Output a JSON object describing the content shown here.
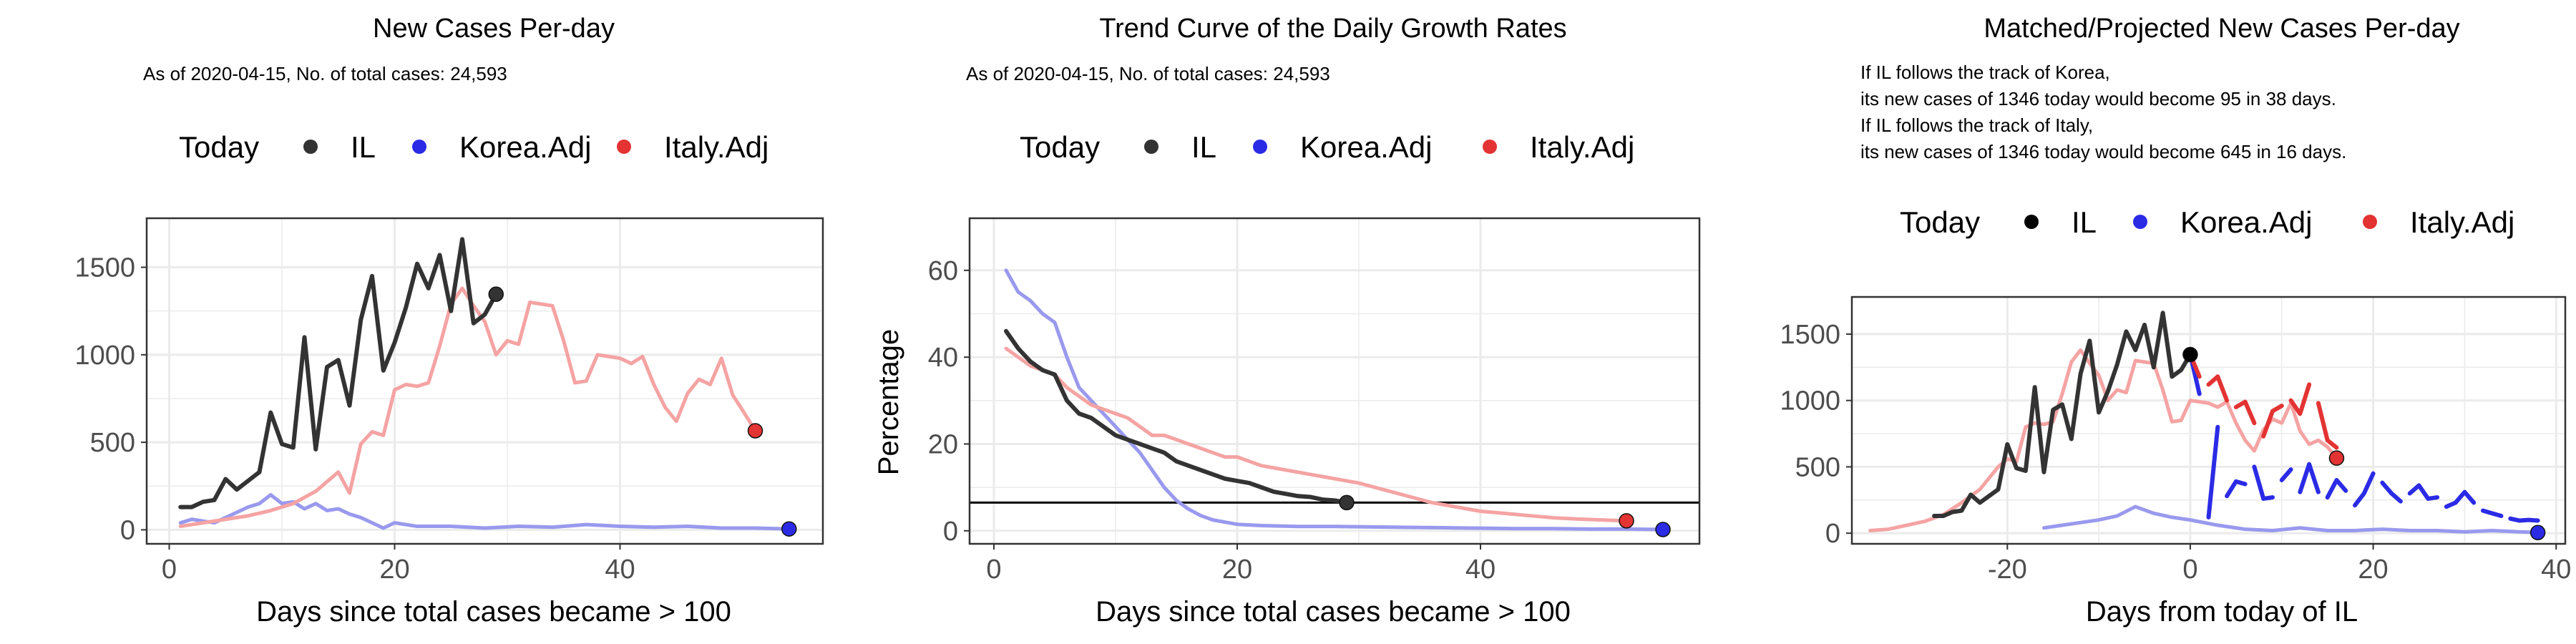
{
  "colors": {
    "il": "#333333",
    "korea": "#9999ee",
    "italy": "#f5a3a3",
    "korea_strong": "#2b2be6",
    "italy_strong": "#e33333",
    "grid": "#ebebeb",
    "panel_border": "#333333"
  },
  "legend": {
    "title": "Today",
    "items": [
      "IL",
      "Korea.Adj",
      "Italy.Adj"
    ]
  },
  "chart_data": [
    {
      "type": "line",
      "title": "New Cases Per-day",
      "subtitle_lines": [
        "As of 2020-04-15, No. of total cases: 24,593"
      ],
      "xlabel": "Days since total cases became > 100",
      "ylabel": "",
      "xlim": [
        -2,
        58
      ],
      "ylim": [
        -80,
        1780
      ],
      "xticks": [
        0,
        20,
        40
      ],
      "yticks": [
        0,
        500,
        1000,
        1500
      ],
      "grid": true,
      "series": [
        {
          "name": "IL",
          "x": [
            1,
            2,
            3,
            4,
            5,
            6,
            7,
            8,
            9,
            10,
            11,
            12,
            13,
            14,
            15,
            16,
            17,
            18,
            19,
            20,
            21,
            22,
            23,
            24,
            25,
            26,
            27,
            28,
            29
          ],
          "y": [
            130,
            130,
            160,
            170,
            290,
            230,
            280,
            330,
            670,
            490,
            470,
            1100,
            460,
            930,
            970,
            710,
            1200,
            1450,
            910,
            1070,
            1270,
            1520,
            1380,
            1570,
            1250,
            1660,
            1180,
            1230,
            1346
          ]
        },
        {
          "name": "Korea.Adj",
          "x": [
            1,
            2,
            3,
            4,
            5,
            6,
            7,
            8,
            9,
            10,
            11,
            12,
            13,
            14,
            15,
            16,
            17,
            18,
            19,
            20,
            22,
            25,
            28,
            31,
            34,
            37,
            40,
            43,
            46,
            49,
            52,
            55
          ],
          "y": [
            40,
            60,
            50,
            40,
            70,
            100,
            130,
            150,
            200,
            150,
            160,
            120,
            150,
            110,
            120,
            90,
            70,
            40,
            10,
            40,
            20,
            20,
            10,
            20,
            15,
            30,
            20,
            15,
            20,
            10,
            10,
            5
          ]
        },
        {
          "name": "Italy.Adj",
          "x": [
            1,
            3,
            5,
            7,
            9,
            11,
            13,
            15,
            16,
            17,
            18,
            19,
            20,
            21,
            22,
            23,
            24,
            25,
            26,
            27,
            28,
            29,
            30,
            31,
            32,
            33,
            34,
            35,
            36,
            37,
            38,
            39,
            40,
            41,
            42,
            43,
            44,
            45,
            46,
            47,
            48,
            49,
            50,
            51,
            52
          ],
          "y": [
            20,
            40,
            60,
            80,
            110,
            150,
            220,
            330,
            210,
            490,
            560,
            540,
            800,
            830,
            820,
            840,
            1050,
            1290,
            1380,
            1280,
            1190,
            1000,
            1080,
            1060,
            1300,
            1290,
            1280,
            1080,
            840,
            850,
            1000,
            990,
            980,
            950,
            990,
            830,
            700,
            620,
            780,
            860,
            830,
            980,
            770,
            670,
            566
          ]
        }
      ],
      "today_points": [
        {
          "series": "IL",
          "x": 29,
          "y": 1346
        },
        {
          "series": "Korea.Adj",
          "x": 55,
          "y": 5
        },
        {
          "series": "Italy.Adj",
          "x": 52,
          "y": 566
        }
      ]
    },
    {
      "type": "line",
      "title": "Trend Curve of the Daily Growth Rates",
      "subtitle_lines": [
        "As of 2020-04-15, No. of total cases: 24,593"
      ],
      "xlabel": "Days since total cases became > 100",
      "ylabel": "Percentage",
      "xlim": [
        -2,
        58
      ],
      "ylim": [
        -3,
        72
      ],
      "xticks": [
        0,
        20,
        40
      ],
      "yticks": [
        0,
        20,
        40,
        60
      ],
      "grid": true,
      "hline": 6.5,
      "series": [
        {
          "name": "IL",
          "x": [
            1,
            2,
            3,
            4,
            5,
            6,
            7,
            8,
            9,
            10,
            11,
            12,
            13,
            14,
            15,
            16,
            17,
            18,
            19,
            20,
            21,
            22,
            23,
            24,
            25,
            26,
            27,
            28,
            29
          ],
          "y": [
            46,
            42,
            39,
            37,
            36,
            30,
            27,
            26,
            24,
            22,
            21,
            20,
            19,
            18,
            16,
            15,
            14,
            13,
            12,
            11.5,
            11,
            10,
            9,
            8.5,
            8,
            7.8,
            7.2,
            7,
            6.5
          ]
        },
        {
          "name": "Korea.Adj",
          "x": [
            1,
            2,
            3,
            4,
            5,
            6,
            7,
            8,
            9,
            10,
            11,
            12,
            13,
            14,
            15,
            16,
            17,
            18,
            19,
            20,
            22,
            25,
            28,
            31,
            34,
            37,
            40,
            43,
            46,
            49,
            52,
            55
          ],
          "y": [
            60,
            55,
            53,
            50,
            48,
            40,
            33,
            30,
            27,
            24,
            21,
            18,
            14,
            10,
            7,
            5,
            3.5,
            2.5,
            2,
            1.5,
            1.2,
            1,
            1,
            0.9,
            0.8,
            0.7,
            0.6,
            0.5,
            0.5,
            0.4,
            0.4,
            0.3
          ]
        },
        {
          "name": "Italy.Adj",
          "x": [
            1,
            2,
            3,
            4,
            5,
            6,
            7,
            8,
            9,
            10,
            11,
            12,
            13,
            14,
            15,
            16,
            17,
            18,
            19,
            20,
            22,
            24,
            26,
            28,
            30,
            32,
            34,
            36,
            38,
            40,
            42,
            44,
            46,
            48,
            50,
            52
          ],
          "y": [
            42,
            40,
            38,
            37,
            36,
            33,
            31,
            29,
            28,
            27,
            26,
            24,
            22,
            22,
            21,
            20,
            19,
            18,
            17,
            17,
            15,
            14,
            13,
            12,
            11,
            9.5,
            8,
            6.5,
            5.5,
            4.5,
            4,
            3.5,
            3,
            2.7,
            2.5,
            2.3
          ]
        }
      ],
      "today_points": [
        {
          "series": "IL",
          "x": 29,
          "y": 6.5
        },
        {
          "series": "Korea.Adj",
          "x": 55,
          "y": 0.3
        },
        {
          "series": "Italy.Adj",
          "x": 52,
          "y": 2.3
        }
      ]
    },
    {
      "type": "line",
      "title": "Matched/Projected New Cases Per-day",
      "subtitle_lines": [
        "If IL follows the track of Korea,",
        "its new cases of 1346 today would become 95 in 38 days.",
        "If IL follows the track of Italy,",
        "its new cases of 1346 today would become 645 in 16 days."
      ],
      "xlabel": "Days from today of IL",
      "ylabel": "",
      "xlim": [
        -37,
        41
      ],
      "ylim": [
        -80,
        1780
      ],
      "xticks": [
        -20,
        0,
        20,
        40
      ],
      "yticks": [
        0,
        500,
        1000,
        1500
      ],
      "grid": true,
      "series": [
        {
          "name": "IL",
          "x": [
            -28,
            -27,
            -26,
            -25,
            -24,
            -23,
            -22,
            -21,
            -20,
            -19,
            -18,
            -17,
            -16,
            -15,
            -14,
            -13,
            -12,
            -11,
            -10,
            -9,
            -8,
            -7,
            -6,
            -5,
            -4,
            -3,
            -2,
            -1,
            0
          ],
          "y": [
            130,
            130,
            160,
            170,
            290,
            230,
            280,
            330,
            670,
            490,
            470,
            1100,
            460,
            930,
            970,
            710,
            1200,
            1450,
            910,
            1070,
            1270,
            1520,
            1380,
            1570,
            1250,
            1660,
            1180,
            1230,
            1346
          ]
        },
        {
          "name": "Korea.Adj",
          "x": [
            -16,
            -14,
            -12,
            -10,
            -8,
            -6,
            -4,
            -2,
            0,
            3,
            6,
            9,
            12,
            15,
            18,
            21,
            24,
            27,
            30,
            33,
            36,
            38
          ],
          "y": [
            40,
            60,
            80,
            100,
            130,
            200,
            150,
            120,
            100,
            60,
            30,
            20,
            40,
            20,
            20,
            30,
            20,
            20,
            10,
            20,
            10,
            5
          ]
        },
        {
          "name": "Italy.Adj",
          "x": [
            -35,
            -33,
            -31,
            -29,
            -27,
            -25,
            -23,
            -21,
            -20,
            -19,
            -18,
            -17,
            -16,
            -15,
            -14,
            -13,
            -12,
            -11,
            -10,
            -9,
            -8,
            -7,
            -6,
            -5,
            -4,
            -3,
            -2,
            -1,
            0,
            1,
            2,
            3,
            4,
            5,
            6,
            7,
            8,
            9,
            10,
            11,
            12,
            13,
            14,
            15,
            16
          ],
          "y": [
            20,
            30,
            60,
            90,
            140,
            230,
            330,
            500,
            560,
            540,
            800,
            830,
            820,
            840,
            1050,
            1290,
            1380,
            1280,
            1190,
            1000,
            1080,
            1060,
            1300,
            1290,
            1280,
            1080,
            840,
            850,
            1000,
            990,
            980,
            950,
            990,
            830,
            700,
            620,
            780,
            860,
            830,
            980,
            770,
            670,
            700,
            650,
            566
          ]
        }
      ],
      "projection_segments": [
        {
          "series": "Korea.Adj",
          "x": [
            0,
            1,
            2,
            3,
            4,
            5,
            6,
            7,
            8,
            9,
            10,
            11,
            12,
            13,
            14,
            15,
            16,
            17,
            18,
            19,
            20,
            21,
            22,
            23,
            24,
            25,
            26,
            27,
            28,
            29,
            30,
            31,
            32,
            33,
            34,
            35,
            36,
            37,
            38
          ],
          "y": [
            1346,
            1050,
            120,
            800,
            280,
            390,
            370,
            500,
            260,
            270,
            400,
            480,
            310,
            520,
            310,
            270,
            400,
            320,
            210,
            300,
            450,
            380,
            300,
            240,
            300,
            360,
            260,
            270,
            200,
            230,
            310,
            230,
            170,
            150,
            130,
            110,
            95,
            100,
            95
          ],
          "gaps_after": [
            1,
            3,
            6,
            9,
            11,
            14,
            17,
            20,
            23,
            27,
            31,
            34
          ]
        },
        {
          "series": "Italy.Adj",
          "x": [
            0,
            1,
            2,
            3,
            4,
            5,
            6,
            7,
            8,
            9,
            10,
            11,
            12,
            13,
            14,
            15,
            16
          ],
          "y": [
            1346,
            1180,
            1120,
            1180,
            1000,
            950,
            990,
            830,
            730,
            920,
            960,
            1000,
            900,
            1120,
            980,
            700,
            645
          ],
          "gaps_after": [
            1,
            4,
            7,
            10,
            13
          ]
        }
      ],
      "today_points": [
        {
          "series": "IL",
          "x": 0,
          "y": 1346
        },
        {
          "series": "Korea.Adj",
          "x": 38,
          "y": 5
        },
        {
          "series": "Italy.Adj",
          "x": 16,
          "y": 566
        }
      ]
    }
  ]
}
